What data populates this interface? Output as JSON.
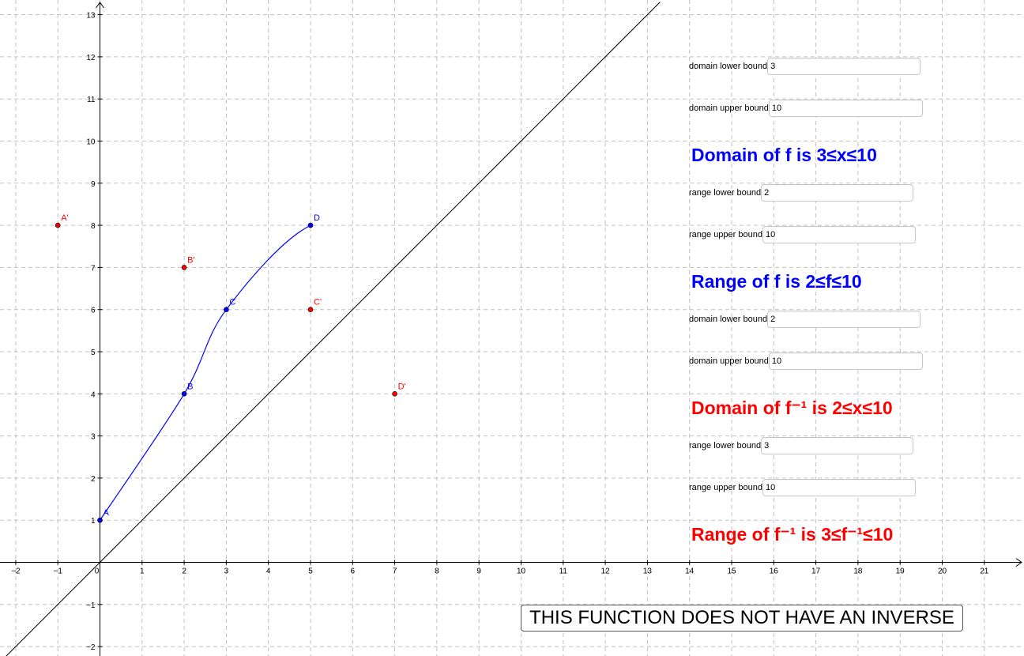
{
  "graph": {
    "x_ticks": [
      "−2",
      "−1",
      "0",
      "1",
      "2",
      "3",
      "4",
      "5",
      "6",
      "7",
      "8",
      "9",
      "10",
      "11",
      "12",
      "13",
      "14",
      "15",
      "16",
      "17",
      "18",
      "19",
      "20",
      "21"
    ],
    "y_ticks": [
      "−2",
      "−1",
      "1",
      "2",
      "3",
      "4",
      "5",
      "6",
      "7",
      "8",
      "9",
      "10",
      "11",
      "12",
      "13"
    ],
    "points": [
      {
        "label": "A",
        "x": 0,
        "y": 1,
        "color": "#0000ff"
      },
      {
        "label": "B",
        "x": 2,
        "y": 4,
        "color": "#0000ff"
      },
      {
        "label": "C",
        "x": 3,
        "y": 6,
        "color": "#0000ff"
      },
      {
        "label": "D",
        "x": 5,
        "y": 8,
        "color": "#0000ff"
      },
      {
        "label": "A'",
        "x": -1,
        "y": 8,
        "color": "#ff0000"
      },
      {
        "label": "B'",
        "x": 2,
        "y": 7,
        "color": "#ff0000"
      },
      {
        "label": "C'",
        "x": 5,
        "y": 6,
        "color": "#ff0000"
      },
      {
        "label": "D'",
        "x": 7,
        "y": 4,
        "color": "#ff0000"
      }
    ],
    "curve_color": "#0000ff",
    "line_color": "#000000",
    "grid": true
  },
  "panel": {
    "f_domain_lower": {
      "label": "domain lower bound",
      "value": "3"
    },
    "f_domain_upper": {
      "label": "domain upper bound",
      "value": "10"
    },
    "f_domain_text": "Domain of f is 3≤x≤10",
    "f_range_lower": {
      "label": "range lower bound",
      "value": "2"
    },
    "f_range_upper": {
      "label": "range upper bound",
      "value": "10"
    },
    "f_range_text": "Range of f is 2≤f≤10",
    "inv_domain_lower": {
      "label": "domain lower bound",
      "value": "2"
    },
    "inv_domain_upper": {
      "label": "domain upper bound",
      "value": "10"
    },
    "inv_domain_text": "Domain of f⁻¹ is 2≤x≤10",
    "inv_range_lower": {
      "label": "range lower bound",
      "value": "3"
    },
    "inv_range_upper": {
      "label": "range upper bound",
      "value": "10"
    },
    "inv_range_text": "Range of f⁻¹ is 3≤f⁻¹≤10",
    "colors": {
      "f_text": "#0000ff",
      "inverse_text": "#ff0000"
    }
  },
  "button": {
    "label": "THIS FUNCTION DOES NOT HAVE AN INVERSE"
  }
}
